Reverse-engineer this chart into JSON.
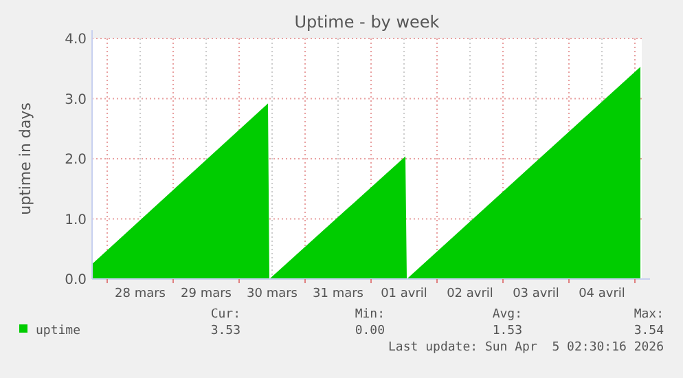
{
  "chart_data": {
    "type": "area",
    "title": "Uptime - by week",
    "ylabel": "uptime in days",
    "x": [
      "2026-03-27T18:30",
      "2026-03-30T10:30",
      "2026-03-30T11:00",
      "2026-04-01T12:30",
      "2026-04-01T13:00",
      "2026-04-05T02:00"
    ],
    "series": [
      {
        "name": "uptime",
        "color": "#00cc00",
        "values": [
          0.25,
          2.92,
          0,
          2.04,
          0,
          3.53
        ]
      }
    ],
    "xlim": [
      "2026-03-27T18:30",
      "2026-04-05T02:30"
    ],
    "xticks": [
      {
        "value": "2026-03-28T00:00",
        "label": null
      },
      {
        "value": "2026-03-28T12:00",
        "label": "28 mars"
      },
      {
        "value": "2026-03-29T00:00",
        "label": null
      },
      {
        "value": "2026-03-29T12:00",
        "label": "29 mars"
      },
      {
        "value": "2026-03-30T00:00",
        "label": null
      },
      {
        "value": "2026-03-30T12:00",
        "label": "30 mars"
      },
      {
        "value": "2026-03-31T00:00",
        "label": null
      },
      {
        "value": "2026-03-31T12:00",
        "label": "31 mars"
      },
      {
        "value": "2026-04-01T00:00",
        "label": null
      },
      {
        "value": "2026-04-01T12:00",
        "label": "01 avril"
      },
      {
        "value": "2026-04-02T00:00",
        "label": null
      },
      {
        "value": "2026-04-02T12:00",
        "label": "02 avril"
      },
      {
        "value": "2026-04-03T00:00",
        "label": null
      },
      {
        "value": "2026-04-03T12:00",
        "label": "03 avril"
      },
      {
        "value": "2026-04-04T00:00",
        "label": null
      },
      {
        "value": "2026-04-04T12:00",
        "label": "04 avril"
      },
      {
        "value": "2026-04-05T00:00",
        "label": null
      }
    ],
    "ylim": [
      0,
      4
    ],
    "yticks": [
      {
        "value": 0,
        "label": "0.0"
      },
      {
        "value": 1,
        "label": "1.0"
      },
      {
        "value": 2,
        "label": "2.0"
      },
      {
        "value": 3,
        "label": "3.0"
      },
      {
        "value": 4,
        "label": "4.0"
      }
    ],
    "grid": true,
    "legend": "bottom",
    "annotations": [
      "Cur:",
      "Min:",
      "Avg:",
      "Max:",
      "3.53",
      "0.00",
      "1.53",
      "3.54",
      "Last update: Sun Apr  5 02:30:16 2026"
    ]
  }
}
